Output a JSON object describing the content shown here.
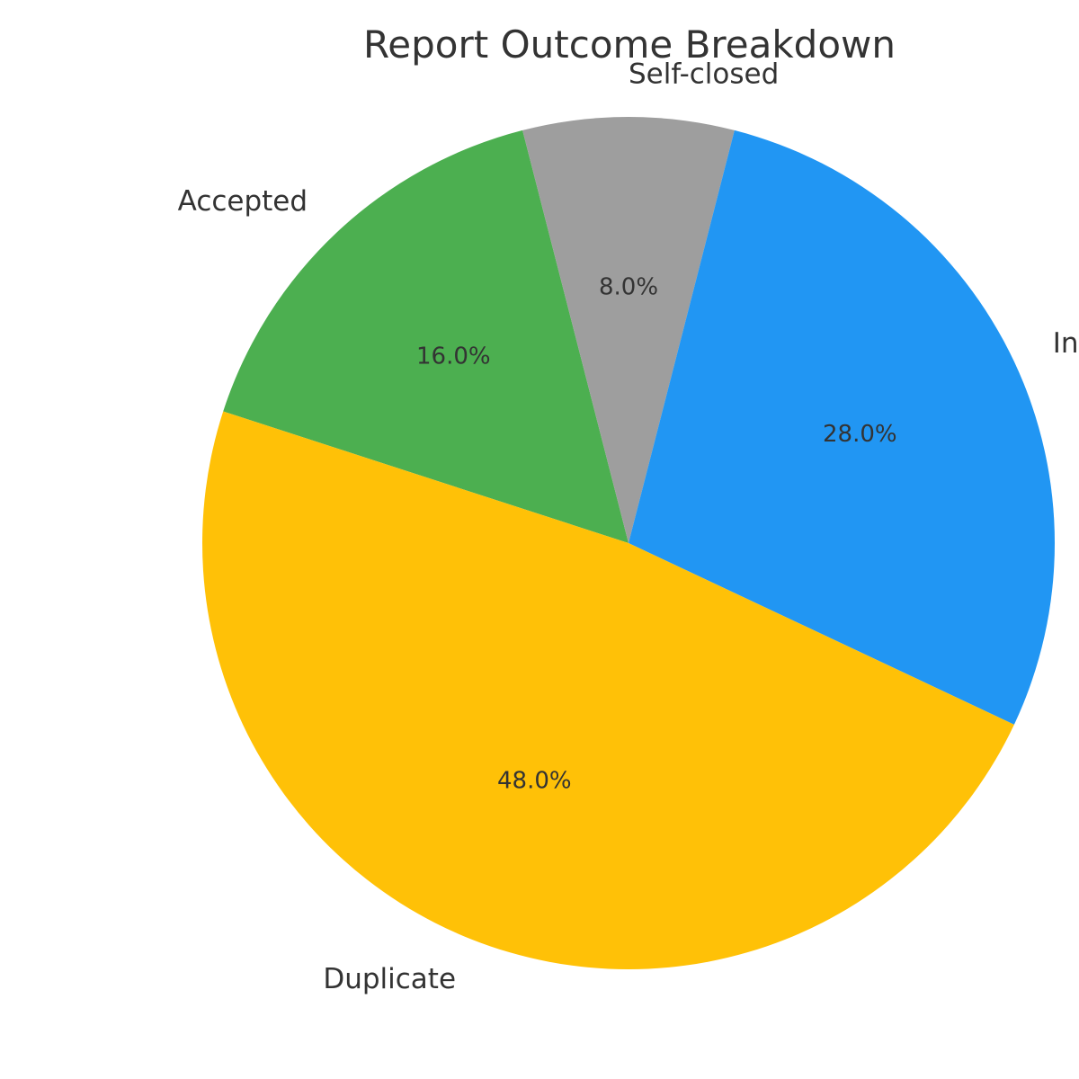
{
  "chart_data": {
    "type": "pie",
    "title": "Report Outcome Breakdown",
    "start_angle_deg": 162,
    "direction": "clockwise",
    "slices": [
      {
        "label": "Accepted",
        "value": 16.0,
        "pct_label": "16.0%",
        "color": "#4CAF50"
      },
      {
        "label": "Self-closed",
        "value": 8.0,
        "pct_label": "8.0%",
        "color": "#9E9E9E"
      },
      {
        "label": "Informative",
        "value": 28.0,
        "pct_label": "28.0%",
        "color": "#2196F3"
      },
      {
        "label": "Duplicate",
        "value": 48.0,
        "pct_label": "48.0%",
        "color": "#FFC107"
      }
    ]
  }
}
